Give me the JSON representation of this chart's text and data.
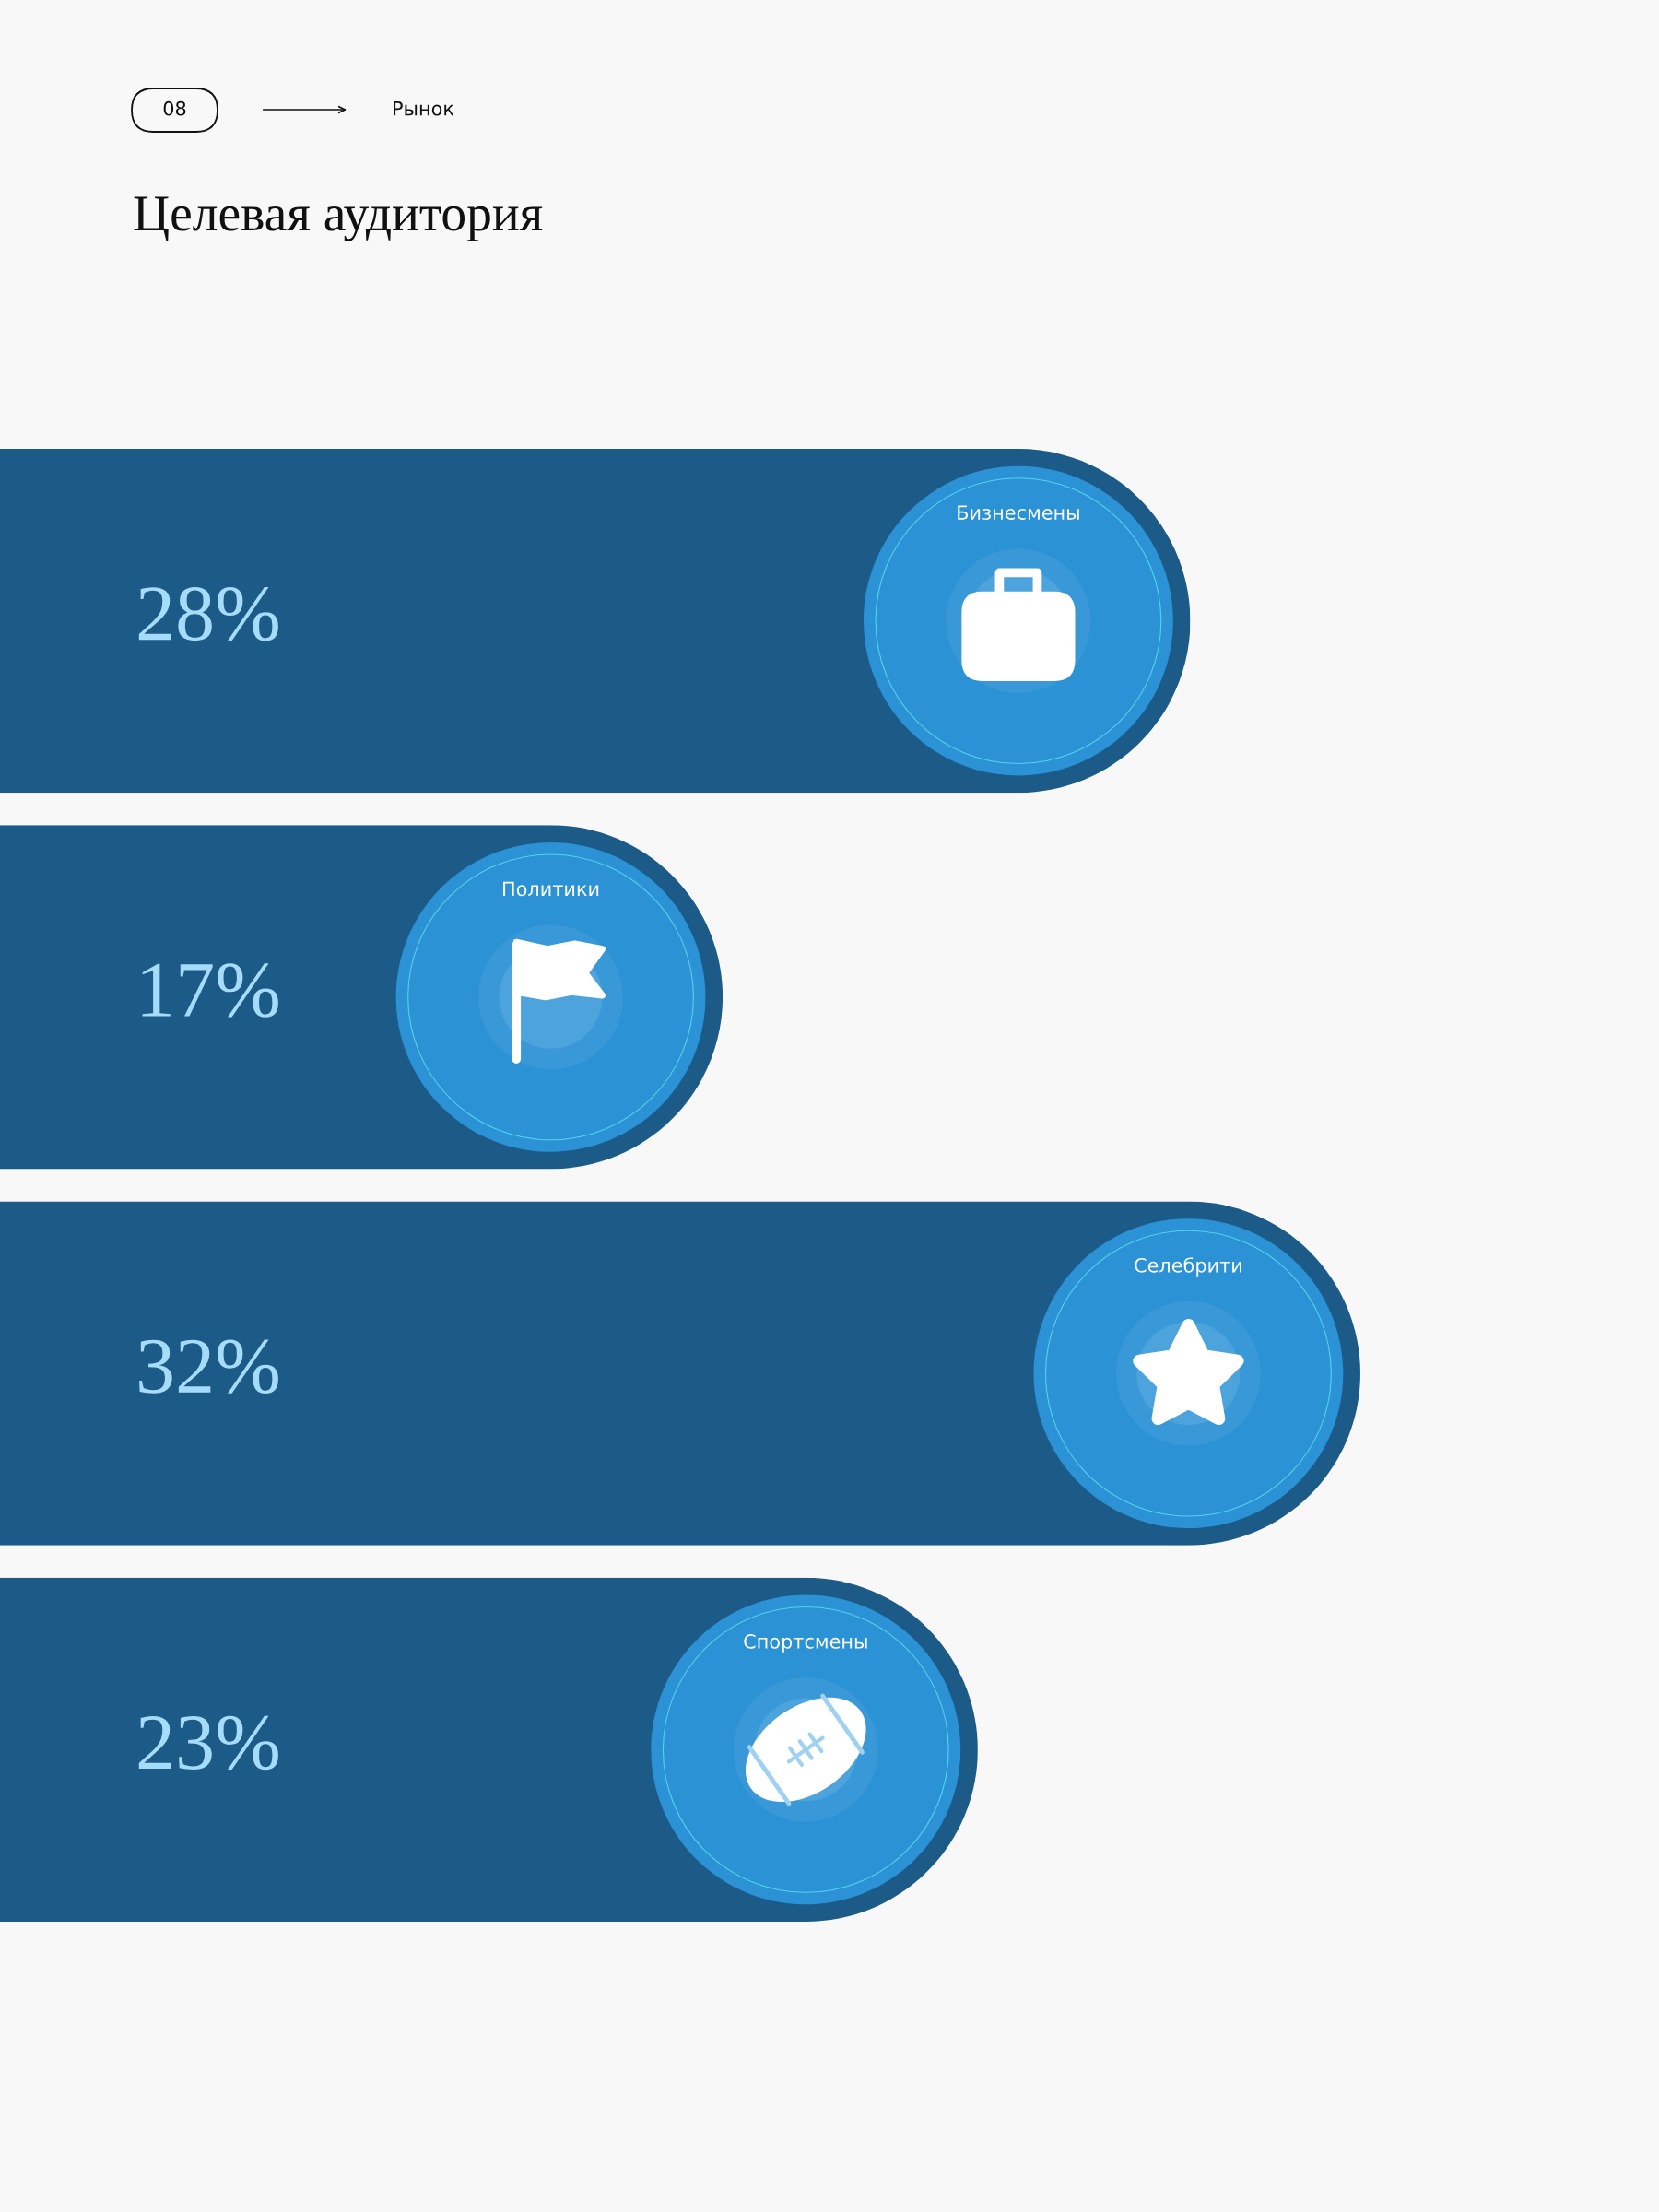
{
  "chart_data": {
    "type": "bar",
    "orientation": "horizontal",
    "title": "Целевая аудитория",
    "categories": [
      "Бизнесмены",
      "Политики",
      "Селебрити",
      "Спортсмены"
    ],
    "values": [
      28,
      17,
      32,
      23
    ],
    "value_labels": [
      "28%",
      "17%",
      "32%",
      "23%"
    ],
    "color": "#1c5a87",
    "annotations": [
      "08",
      "Рынок"
    ]
  }
}
